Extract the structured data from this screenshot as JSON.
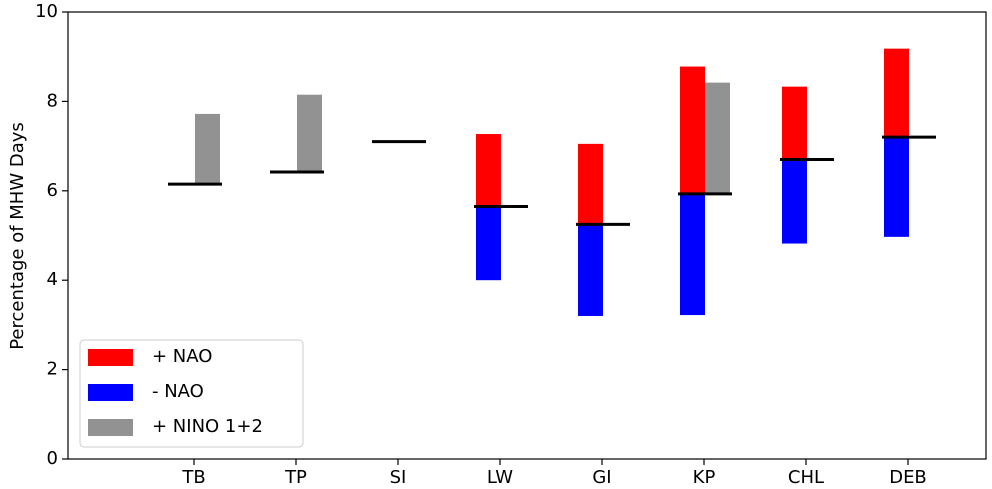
{
  "chart_data": {
    "type": "floating-bar",
    "y_label": "Percentage of MHW Days",
    "categories": [
      "TB",
      "TP",
      "SI",
      "LW",
      "GI",
      "KP",
      "CHL",
      "DEB"
    ],
    "baseline": [
      6.15,
      6.42,
      7.1,
      5.65,
      5.25,
      5.93,
      6.7,
      7.2
    ],
    "baseline_color": "#000000",
    "series": [
      {
        "name": "+ NAO",
        "color": "#ff0000",
        "values": [
          null,
          null,
          null,
          7.27,
          7.05,
          8.78,
          8.33,
          9.18
        ]
      },
      {
        "name": "-  NAO",
        "color": "#0000ff",
        "values": [
          null,
          null,
          null,
          4.0,
          3.2,
          3.22,
          4.82,
          4.97
        ]
      },
      {
        "name": "+ NINO 1+2",
        "color": "#929292",
        "values": [
          7.72,
          8.15,
          null,
          null,
          null,
          8.42,
          null,
          null
        ]
      }
    ],
    "ylim": [
      0,
      10
    ],
    "yticks": [
      0,
      2,
      4,
      6,
      8,
      10
    ],
    "legend": "lower left"
  }
}
